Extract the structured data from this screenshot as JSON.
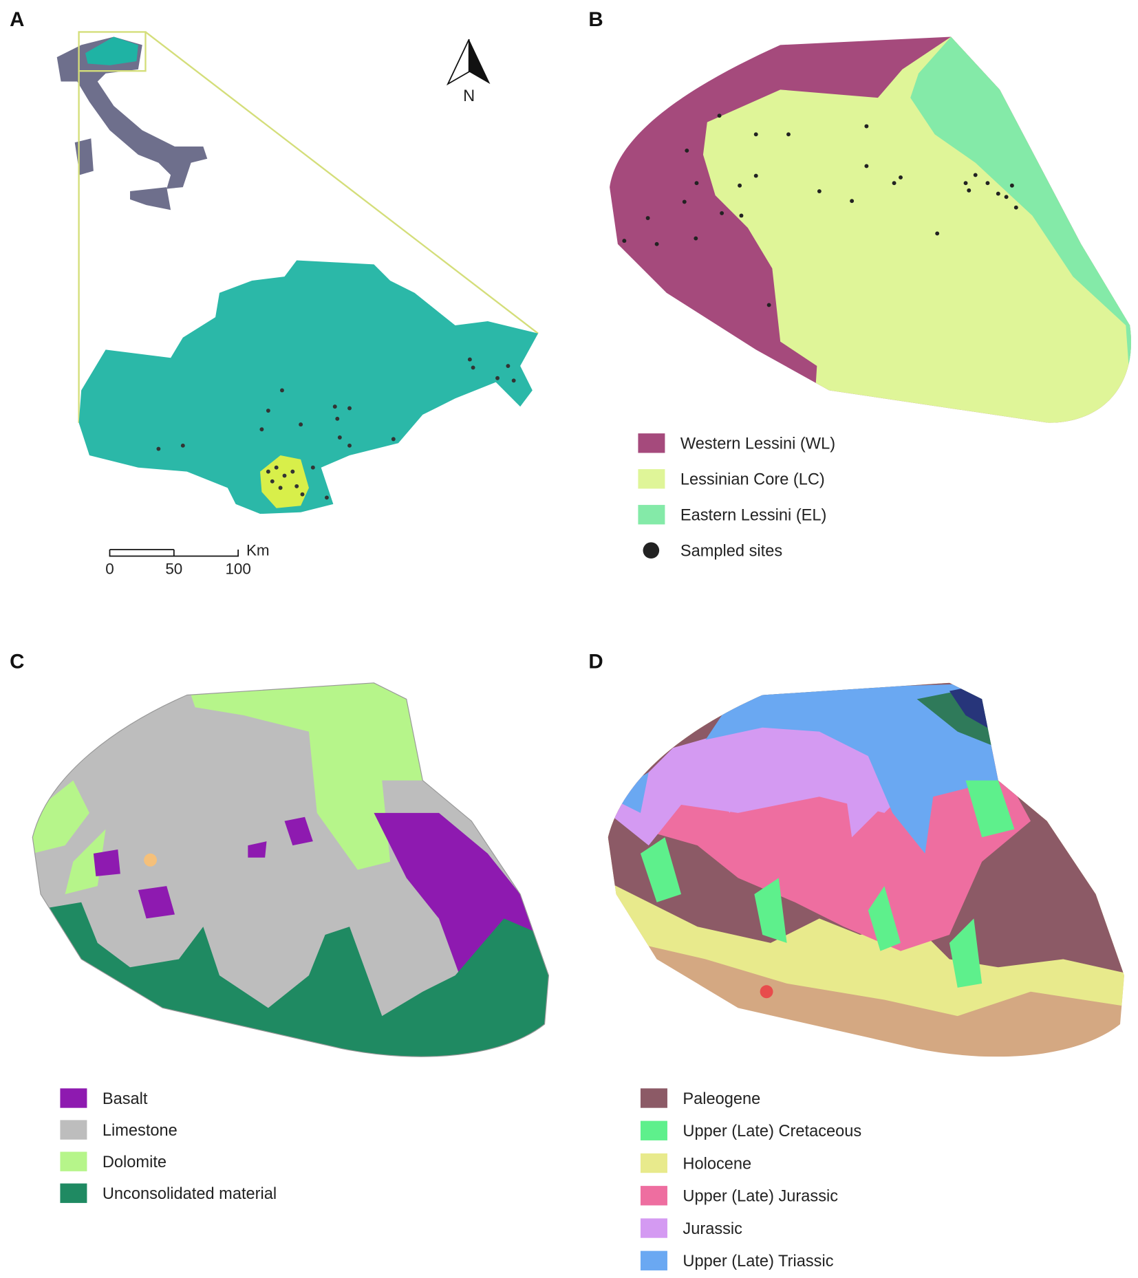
{
  "panels": {
    "a": {
      "label": "A",
      "north": "N",
      "scale_unit": "Km",
      "scale_ticks": [
        "0",
        "50",
        "100"
      ]
    },
    "b": {
      "label": "B",
      "legend": [
        {
          "label": "Western Lessini (WL)",
          "color": "#a54a7c",
          "shape": "square"
        },
        {
          "label": "Lessinian Core (LC)",
          "color": "#dff598",
          "shape": "square"
        },
        {
          "label": "Eastern Lessini (EL)",
          "color": "#84eaa8",
          "shape": "square"
        },
        {
          "label": "Sampled sites",
          "color": "#222222",
          "shape": "dot"
        }
      ]
    },
    "c": {
      "label": "C",
      "legend": [
        {
          "label": "Basalt",
          "color": "#8e1ab0",
          "shape": "square"
        },
        {
          "label": "Limestone",
          "color": "#bdbdbd",
          "shape": "square"
        },
        {
          "label": "Dolomite",
          "color": "#b6f58a",
          "shape": "square"
        },
        {
          "label": "Unconsolidated material",
          "color": "#1f8a62",
          "shape": "square"
        }
      ]
    },
    "d": {
      "label": "D",
      "legend": [
        {
          "label": "Paleogene",
          "color": "#8c5a66",
          "shape": "square"
        },
        {
          "label": "Upper (Late) Cretaceous",
          "color": "#5ef08c",
          "shape": "square"
        },
        {
          "label": "Holocene",
          "color": "#e8ea8c",
          "shape": "square"
        },
        {
          "label": "Upper (Late) Jurassic",
          "color": "#ee6ea0",
          "shape": "square"
        },
        {
          "label": "Jurassic",
          "color": "#d49af2",
          "shape": "square"
        },
        {
          "label": "Upper (Late) Triassic",
          "color": "#6aa8f2",
          "shape": "square"
        }
      ]
    }
  }
}
